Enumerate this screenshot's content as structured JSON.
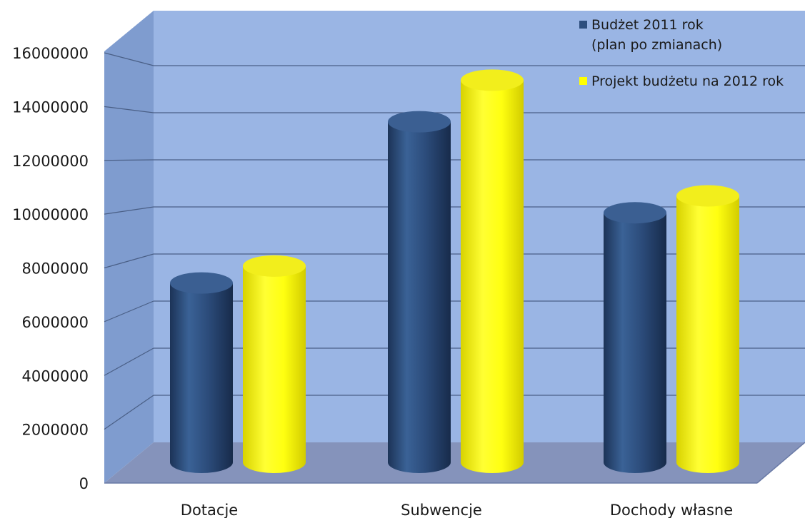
{
  "chart_data": {
    "type": "bar",
    "categories": [
      "Dotacje",
      "Subwencje",
      "Dochody własne"
    ],
    "series": [
      {
        "name": "Budżet 2011 rok (plan po zmianach)",
        "legend_lines": [
          "Budżet 2011 rok",
          "(plan po zmianach)"
        ],
        "color": "#2e4f7e",
        "values": [
          6900000,
          13100000,
          9600000
        ]
      },
      {
        "name": "Projekt budżetu na 2012 rok",
        "legend_lines": [
          "Projekt budżetu na 2012 rok"
        ],
        "color": "#ffff00",
        "values": [
          7550000,
          14700000,
          10250000
        ]
      }
    ],
    "y_ticks": [
      "0",
      "2000000",
      "4000000",
      "6000000",
      "8000000",
      "10000000",
      "12000000",
      "14000000",
      "16000000"
    ],
    "ylim": [
      0,
      16000000
    ],
    "grid": true,
    "legend_position": "top-right",
    "style": "3d cylinders",
    "wall_color": "#9db7e6",
    "floor_color": "#7f90b8"
  }
}
